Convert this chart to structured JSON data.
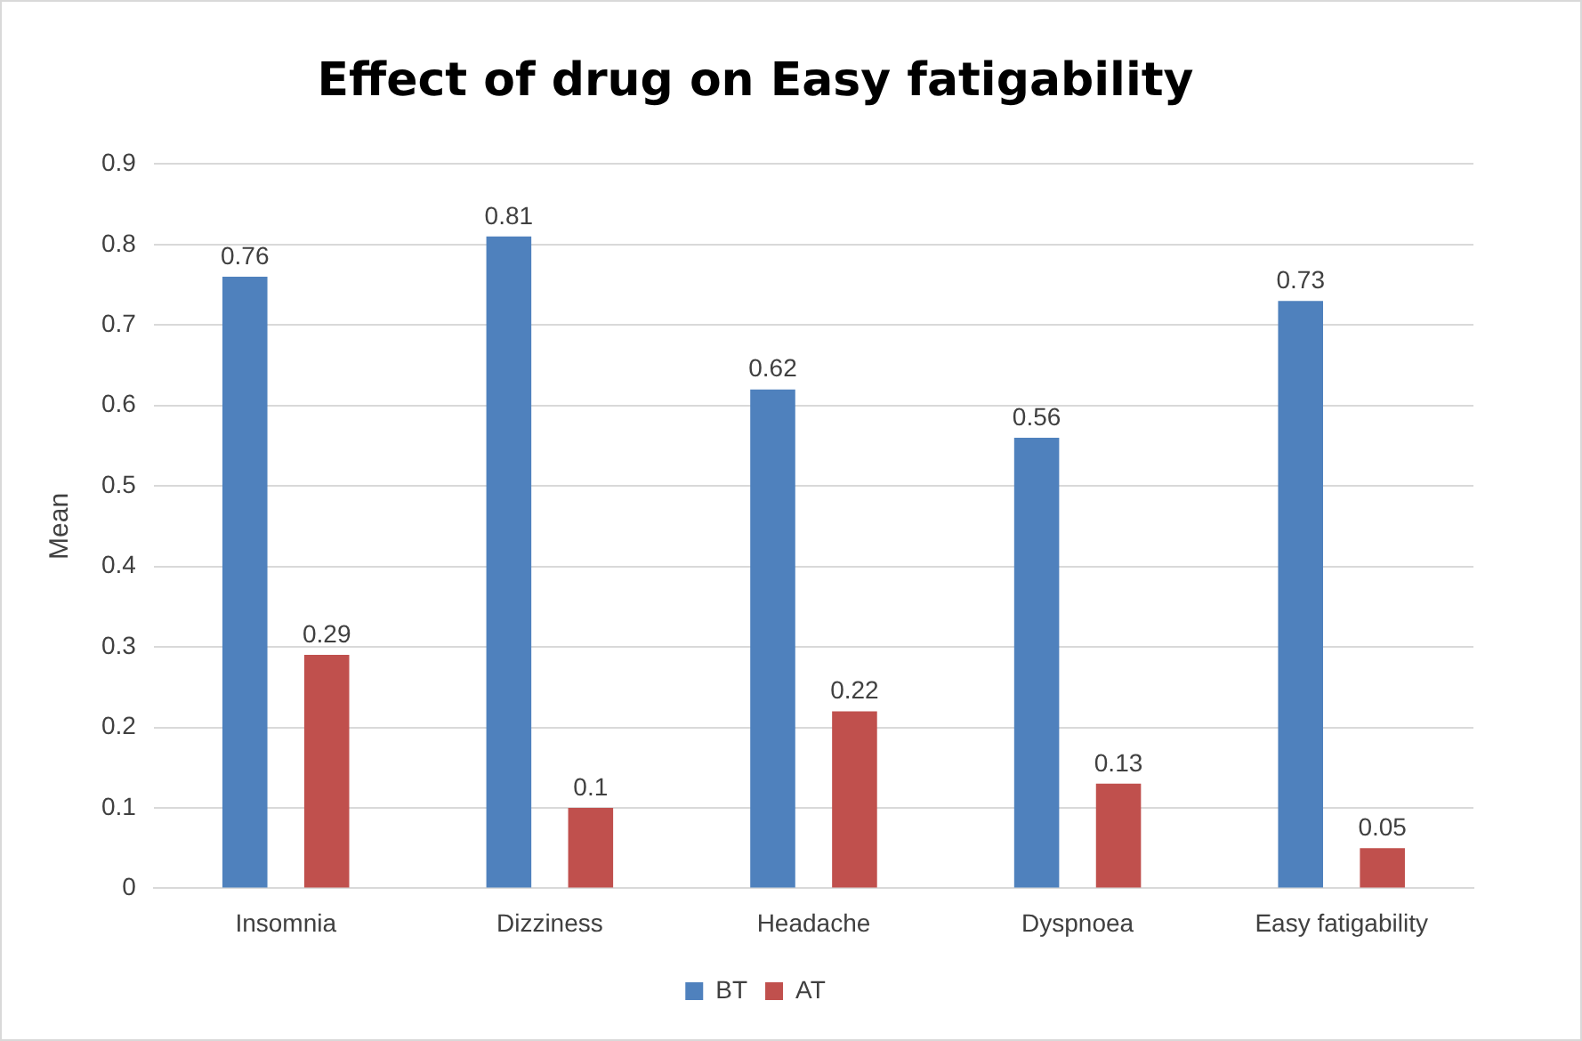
{
  "chart_data": {
    "type": "bar",
    "title": "Effect of drug on Easy fatigability",
    "ylabel": "Mean",
    "categories": [
      "Insomnia",
      "Dizziness",
      "Headache",
      "Dyspnoea",
      "Easy fatigability"
    ],
    "series": [
      {
        "name": "BT",
        "color": "#4f81bd",
        "values": [
          0.76,
          0.81,
          0.62,
          0.56,
          0.73
        ]
      },
      {
        "name": "AT",
        "color": "#c0504d",
        "values": [
          0.29,
          0.1,
          0.22,
          0.13,
          0.05
        ]
      }
    ],
    "ylim": [
      0,
      0.9
    ],
    "yticks": [
      0,
      0.1,
      0.2,
      0.3,
      0.4,
      0.5,
      0.6,
      0.7,
      0.8,
      0.9
    ],
    "grid": "y",
    "legend": "bottom",
    "data_labels": true
  }
}
